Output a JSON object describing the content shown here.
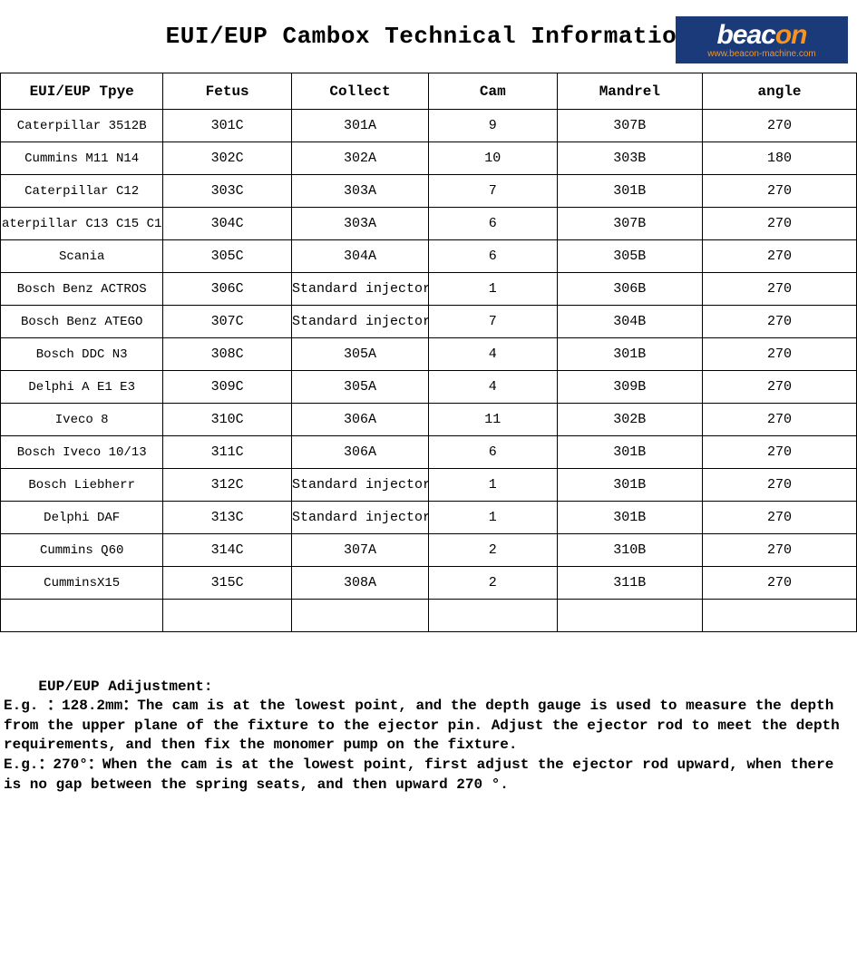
{
  "title": "EUI/EUP Cambox Technical Information",
  "logo": {
    "brand_main": "beac",
    "brand_accent": "on",
    "url": "www.beacon-machine.com",
    "bg_color": "#1a3a7a",
    "text_color": "#ffffff",
    "accent_color": "#f7931e"
  },
  "table": {
    "columns": [
      "EUI/EUP Tpye",
      "Fetus",
      "Collect",
      "Cam",
      "Mandrel",
      "angle"
    ],
    "column_widths_pct": [
      19,
      15,
      16,
      15,
      17,
      18
    ],
    "header_fontsize": 16,
    "cell_fontsize": 15,
    "border_color": "#000000",
    "background_color": "#ffffff",
    "rows": [
      [
        "Caterpillar 3512B",
        "301C",
        "301A",
        "9",
        "307B",
        "270"
      ],
      [
        "Cummins M11 N14",
        "302C",
        "302A",
        "10",
        "303B",
        "180"
      ],
      [
        "Caterpillar C12",
        "303C",
        "303A",
        "7",
        "301B",
        "270"
      ],
      [
        "aterpillar C13 C15 C1",
        "304C",
        "303A",
        "6",
        "307B",
        "270"
      ],
      [
        "Scania",
        "305C",
        "304A",
        "6",
        "305B",
        "270"
      ],
      [
        "Bosch Benz ACTROS",
        "306C",
        "Standard injector",
        "1",
        "306B",
        "270"
      ],
      [
        "Bosch Benz ATEGO",
        "307C",
        "Standard injector",
        "7",
        "304B",
        "270"
      ],
      [
        "Bosch DDC N3",
        "308C",
        "305A",
        "4",
        "301B",
        "270"
      ],
      [
        "Delphi  A E1 E3",
        "309C",
        "305A",
        "4",
        "309B",
        "270"
      ],
      [
        "Iveco 8",
        "310C",
        "306A",
        "11",
        "302B",
        "270"
      ],
      [
        "Bosch Iveco 10/13",
        "311C",
        "306A",
        "6",
        "301B",
        "270"
      ],
      [
        "Bosch Liebherr",
        "312C",
        "Standard injector",
        "1",
        "301B",
        "270"
      ],
      [
        "Delphi DAF",
        "313C",
        "Standard injector",
        "1",
        "301B",
        "270"
      ],
      [
        "Cummins Q60",
        "314C",
        "307A",
        "2",
        "310B",
        "270"
      ],
      [
        "CumminsX15",
        "315C",
        "308A",
        "2",
        "311B",
        "270"
      ],
      [
        "",
        "",
        "",
        "",
        "",
        ""
      ]
    ]
  },
  "notes": {
    "heading": "EUP/EUP Adijustment:",
    "body": "E.g. ：128.2mm：The cam is at the lowest point, and the depth gauge is used to measure the depth from the upper plane of the fixture to the ejector pin. Adjust the ejector rod to meet the depth requirements, and then fix the monomer pump on the fixture.\nE.g.：270°：When the cam is at the lowest point, first adjust the ejector rod upward, when there is no gap between the spring seats, and then upward 270 °."
  }
}
